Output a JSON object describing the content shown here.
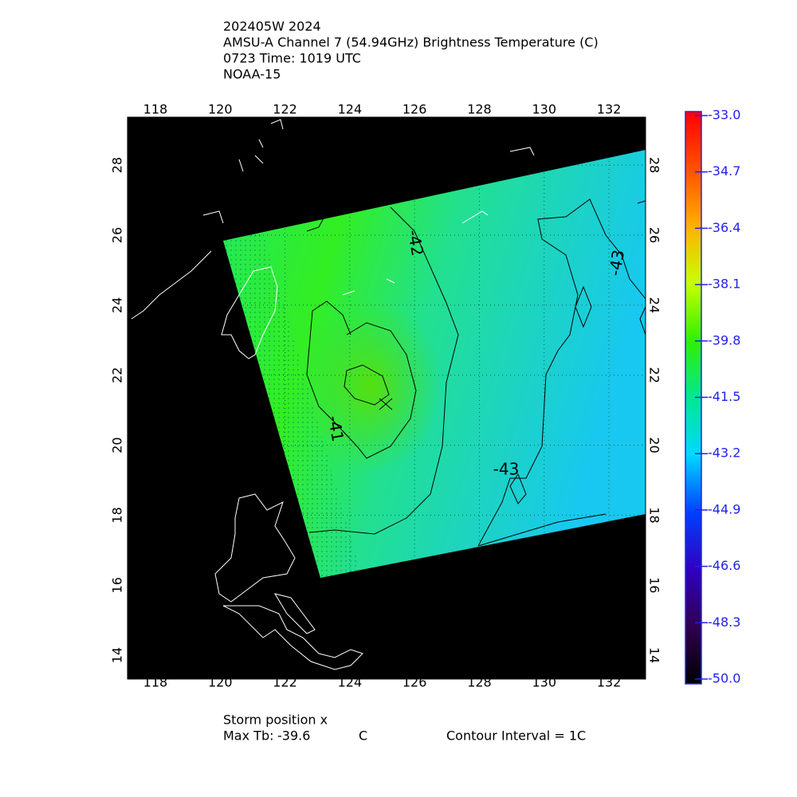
{
  "chart_data": {
    "type": "map",
    "title_lines": [
      "202405W 2024",
      "AMSU-A Channel 7 (54.94GHz) Brightness Temperature (C)",
      "0723 Time: 1019 UTC",
      "NOAA-15"
    ],
    "xlim": [
      117.14,
      133.13
    ],
    "ylim": [
      13.32,
      29.37
    ],
    "xticks": [
      118,
      120,
      122,
      124,
      126,
      128,
      130,
      132
    ],
    "yticks": [
      14,
      16,
      18,
      20,
      22,
      24,
      26,
      28
    ],
    "grid": true,
    "contour_labels": [
      "-42",
      "-41",
      "-43",
      "-43"
    ],
    "colorbar": {
      "lim": [
        -50,
        -33
      ],
      "ticks": [
        {
          "value": -33,
          "label": "-33.0"
        },
        -34.7,
        -36.4,
        -38.1,
        -39.8,
        -41.5,
        -43.2,
        -44.9,
        -46.6,
        -48.3,
        {
          "value": -50,
          "label": "-50.0"
        }
      ]
    },
    "footer": {
      "storm": "Storm position x",
      "max_tb_label": "Max Tb:",
      "max_tb": "-39.6",
      "unit": "C",
      "contour_interval": "Contour Interval = 1C"
    }
  }
}
